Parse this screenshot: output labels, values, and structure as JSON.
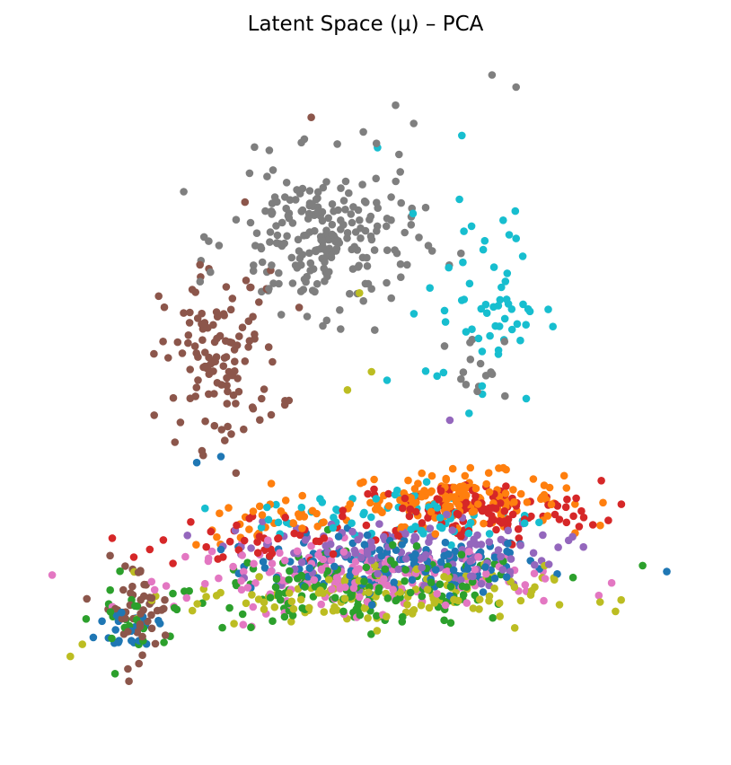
{
  "chart_data": {
    "type": "scatter",
    "title": "Latent Space (μ) – PCA",
    "xlabel": "",
    "ylabel": "",
    "axes_visible": false,
    "grid": false,
    "legend": "none",
    "xlim": [
      -0.5,
      10.5
    ],
    "ylim": [
      -0.5,
      10.5
    ],
    "colors": [
      "#1f77b4",
      "#ff7f0e",
      "#2ca02c",
      "#d62728",
      "#9467bd",
      "#8c564b",
      "#e377c2",
      "#7f7f7f",
      "#bcbd22",
      "#17becf"
    ],
    "series": [
      {
        "color": "#1f77b4",
        "clusters": [
          {
            "cx": 5.5,
            "cy": 2.2,
            "sx": 2.3,
            "sy": 0.45,
            "n": 140
          },
          {
            "cx": 1.2,
            "cy": 1.2,
            "sx": 0.6,
            "sy": 0.4,
            "n": 25
          }
        ],
        "points": [
          [
            10.0,
            2.1
          ],
          [
            2.2,
            3.9
          ],
          [
            2.6,
            4.0
          ]
        ]
      },
      {
        "color": "#ff7f0e",
        "clusters": [
          {
            "cx": 6.5,
            "cy": 3.3,
            "sx": 1.6,
            "sy": 0.4,
            "n": 150
          },
          {
            "cx": 3.5,
            "cy": 2.9,
            "sx": 1.2,
            "sy": 0.35,
            "n": 35
          }
        ],
        "points": []
      },
      {
        "color": "#2ca02c",
        "clusters": [
          {
            "cx": 5.0,
            "cy": 1.8,
            "sx": 2.6,
            "sy": 0.55,
            "n": 170
          },
          {
            "cx": 1.0,
            "cy": 1.3,
            "sx": 0.5,
            "sy": 0.4,
            "n": 20
          }
        ],
        "points": [
          [
            9.6,
            2.2
          ]
        ]
      },
      {
        "color": "#d62728",
        "clusters": [
          {
            "cx": 6.8,
            "cy": 3.1,
            "sx": 1.9,
            "sy": 0.45,
            "n": 130
          },
          {
            "cx": 3.2,
            "cy": 2.6,
            "sx": 1.5,
            "sy": 0.4,
            "n": 40
          }
        ],
        "points": []
      },
      {
        "color": "#9467bd",
        "clusters": [
          {
            "cx": 5.5,
            "cy": 2.4,
            "sx": 2.4,
            "sy": 0.5,
            "n": 150
          }
        ],
        "points": [
          [
            6.4,
            4.6
          ]
        ]
      },
      {
        "color": "#8c564b",
        "clusters": [
          {
            "cx": 2.6,
            "cy": 5.6,
            "sx": 0.9,
            "sy": 1.3,
            "n": 120
          },
          {
            "cx": 1.2,
            "cy": 1.5,
            "sx": 0.5,
            "sy": 0.7,
            "n": 50
          }
        ],
        "points": [
          [
            4.1,
            9.6
          ],
          [
            3.0,
            8.2
          ],
          [
            2.4,
            7.1
          ]
        ]
      },
      {
        "color": "#e377c2",
        "clusters": [
          {
            "cx": 5.0,
            "cy": 2.0,
            "sx": 2.7,
            "sy": 0.5,
            "n": 170
          }
        ],
        "points": [
          [
            1.5,
            1.8
          ]
        ]
      },
      {
        "color": "#7f7f7f",
        "clusters": [
          {
            "cx": 4.3,
            "cy": 7.6,
            "sx": 1.4,
            "sy": 1.1,
            "n": 230
          },
          {
            "cx": 6.8,
            "cy": 5.5,
            "sx": 0.5,
            "sy": 0.5,
            "n": 15
          }
        ],
        "points": [
          [
            7.1,
            10.3
          ],
          [
            7.5,
            10.1
          ],
          [
            5.5,
            9.8
          ],
          [
            5.8,
            9.5
          ]
        ]
      },
      {
        "color": "#bcbd22",
        "clusters": [
          {
            "cx": 5.0,
            "cy": 1.7,
            "sx": 2.7,
            "sy": 0.45,
            "n": 140
          }
        ],
        "points": [
          [
            0.1,
            0.7
          ],
          [
            0.3,
            0.9
          ],
          [
            4.9,
            6.7
          ],
          [
            5.1,
            5.4
          ],
          [
            4.7,
            5.1
          ]
        ]
      },
      {
        "color": "#17becf",
        "clusters": [
          {
            "cx": 7.0,
            "cy": 6.5,
            "sx": 0.9,
            "sy": 1.5,
            "n": 60
          },
          {
            "cx": 5.5,
            "cy": 3.0,
            "sx": 2.2,
            "sy": 0.5,
            "n": 70
          }
        ],
        "points": [
          [
            5.2,
            9.1
          ],
          [
            6.6,
            9.3
          ],
          [
            7.5,
            7.6
          ]
        ]
      }
    ]
  }
}
